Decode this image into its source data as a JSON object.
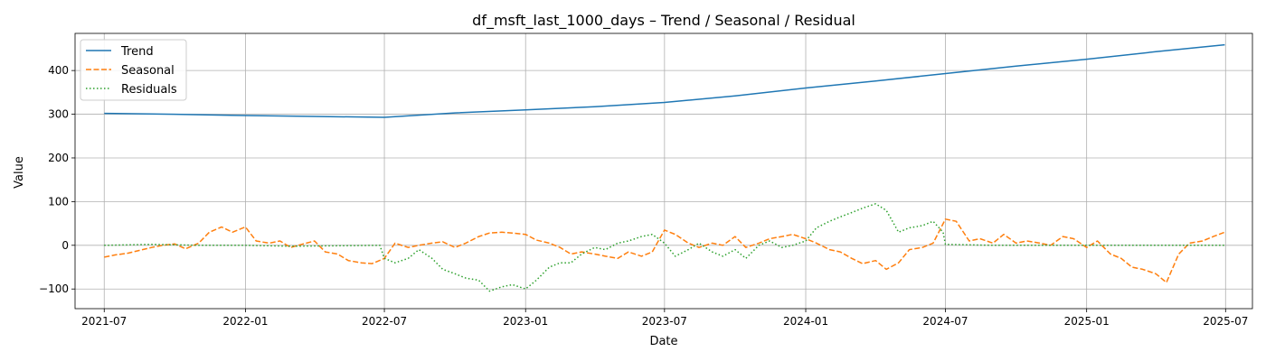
{
  "chart_data": {
    "type": "line",
    "title": "df_msft_last_1000_days – Trend / Seasonal / Residual",
    "xlabel": "Date",
    "ylabel": "Value",
    "xlim": [
      "2021-05-24",
      "2025-08-05"
    ],
    "ylim": [
      -145,
      485
    ],
    "x_ticks": [
      "2021-07",
      "2022-01",
      "2022-07",
      "2023-01",
      "2023-07",
      "2024-01",
      "2024-07",
      "2025-01",
      "2025-07"
    ],
    "y_ticks": [
      -100,
      0,
      100,
      200,
      300,
      400
    ],
    "grid": true,
    "legend_position": "top-left",
    "series": [
      {
        "name": "Trend",
        "color": "#1f77b4",
        "style": "solid",
        "points": [
          [
            "2021-07-01",
            302
          ],
          [
            "2021-10-01",
            300
          ],
          [
            "2022-01-01",
            297
          ],
          [
            "2022-04-01",
            295
          ],
          [
            "2022-07-01",
            293
          ],
          [
            "2022-10-01",
            303
          ],
          [
            "2023-01-01",
            310
          ],
          [
            "2023-04-01",
            317
          ],
          [
            "2023-07-01",
            327
          ],
          [
            "2023-10-01",
            342
          ],
          [
            "2024-01-01",
            360
          ],
          [
            "2024-04-01",
            376
          ],
          [
            "2024-07-01",
            393
          ],
          [
            "2024-10-01",
            410
          ],
          [
            "2025-01-01",
            426
          ],
          [
            "2025-04-01",
            443
          ],
          [
            "2025-06-30",
            459
          ]
        ]
      },
      {
        "name": "Seasonal",
        "color": "#ff7f0e",
        "style": "dashed",
        "points": [
          [
            "2021-07-01",
            -27
          ],
          [
            "2021-07-15",
            -22
          ],
          [
            "2021-08-01",
            -18
          ],
          [
            "2021-08-15",
            -12
          ],
          [
            "2021-09-01",
            -5
          ],
          [
            "2021-09-15",
            0
          ],
          [
            "2021-10-01",
            3
          ],
          [
            "2021-10-15",
            -8
          ],
          [
            "2021-11-01",
            5
          ],
          [
            "2021-11-15",
            30
          ],
          [
            "2021-12-01",
            42
          ],
          [
            "2021-12-15",
            30
          ],
          [
            "2022-01-01",
            42
          ],
          [
            "2022-01-15",
            10
          ],
          [
            "2022-02-01",
            5
          ],
          [
            "2022-02-15",
            10
          ],
          [
            "2022-03-01",
            -5
          ],
          [
            "2022-03-15",
            2
          ],
          [
            "2022-04-01",
            10
          ],
          [
            "2022-04-15",
            -15
          ],
          [
            "2022-05-01",
            -20
          ],
          [
            "2022-05-15",
            -35
          ],
          [
            "2022-06-01",
            -40
          ],
          [
            "2022-06-15",
            -42
          ],
          [
            "2022-07-01",
            -30
          ],
          [
            "2022-07-15",
            5
          ],
          [
            "2022-08-01",
            -5
          ],
          [
            "2022-08-15",
            0
          ],
          [
            "2022-09-01",
            5
          ],
          [
            "2022-09-15",
            8
          ],
          [
            "2022-10-01",
            -5
          ],
          [
            "2022-10-15",
            5
          ],
          [
            "2022-11-01",
            20
          ],
          [
            "2022-11-15",
            28
          ],
          [
            "2022-12-01",
            30
          ],
          [
            "2022-12-15",
            28
          ],
          [
            "2023-01-01",
            25
          ],
          [
            "2023-01-15",
            12
          ],
          [
            "2023-02-01",
            5
          ],
          [
            "2023-02-15",
            -5
          ],
          [
            "2023-03-01",
            -20
          ],
          [
            "2023-03-15",
            -15
          ],
          [
            "2023-04-01",
            -20
          ],
          [
            "2023-04-15",
            -25
          ],
          [
            "2023-05-01",
            -30
          ],
          [
            "2023-05-15",
            -15
          ],
          [
            "2023-06-01",
            -25
          ],
          [
            "2023-06-15",
            -15
          ],
          [
            "2023-07-01",
            35
          ],
          [
            "2023-07-15",
            25
          ],
          [
            "2023-08-01",
            5
          ],
          [
            "2023-08-15",
            -5
          ],
          [
            "2023-09-01",
            5
          ],
          [
            "2023-09-15",
            0
          ],
          [
            "2023-10-01",
            20
          ],
          [
            "2023-10-15",
            -5
          ],
          [
            "2023-11-01",
            5
          ],
          [
            "2023-11-15",
            15
          ],
          [
            "2023-12-01",
            20
          ],
          [
            "2023-12-15",
            25
          ],
          [
            "2024-01-01",
            15
          ],
          [
            "2024-01-15",
            5
          ],
          [
            "2024-02-01",
            -10
          ],
          [
            "2024-02-15",
            -15
          ],
          [
            "2024-03-01",
            -30
          ],
          [
            "2024-03-15",
            -42
          ],
          [
            "2024-04-01",
            -35
          ],
          [
            "2024-04-15",
            -55
          ],
          [
            "2024-05-01",
            -40
          ],
          [
            "2024-05-15",
            -10
          ],
          [
            "2024-06-01",
            -5
          ],
          [
            "2024-06-15",
            5
          ],
          [
            "2024-07-01",
            60
          ],
          [
            "2024-07-15",
            55
          ],
          [
            "2024-08-01",
            10
          ],
          [
            "2024-08-15",
            15
          ],
          [
            "2024-09-01",
            5
          ],
          [
            "2024-09-15",
            25
          ],
          [
            "2024-10-01",
            5
          ],
          [
            "2024-10-15",
            10
          ],
          [
            "2024-11-01",
            5
          ],
          [
            "2024-11-15",
            0
          ],
          [
            "2024-12-01",
            20
          ],
          [
            "2024-12-15",
            15
          ],
          [
            "2025-01-01",
            -5
          ],
          [
            "2025-01-15",
            10
          ],
          [
            "2025-02-01",
            -20
          ],
          [
            "2025-02-15",
            -30
          ],
          [
            "2025-03-01",
            -50
          ],
          [
            "2025-03-15",
            -55
          ],
          [
            "2025-04-01",
            -65
          ],
          [
            "2025-04-15",
            -85
          ],
          [
            "2025-05-01",
            -20
          ],
          [
            "2025-05-15",
            5
          ],
          [
            "2025-06-01",
            10
          ],
          [
            "2025-06-15",
            20
          ],
          [
            "2025-06-30",
            30
          ]
        ]
      },
      {
        "name": "Residuals",
        "color": "#2ca02c",
        "style": "dotted",
        "points": [
          [
            "2021-07-01",
            0
          ],
          [
            "2021-09-01",
            2
          ],
          [
            "2021-11-01",
            0
          ],
          [
            "2022-01-01",
            0
          ],
          [
            "2022-03-01",
            -2
          ],
          [
            "2022-05-01",
            -1
          ],
          [
            "2022-06-25",
            0
          ],
          [
            "2022-07-01",
            -30
          ],
          [
            "2022-07-15",
            -40
          ],
          [
            "2022-08-01",
            -30
          ],
          [
            "2022-08-15",
            -10
          ],
          [
            "2022-09-01",
            -30
          ],
          [
            "2022-09-15",
            -55
          ],
          [
            "2022-10-01",
            -65
          ],
          [
            "2022-10-15",
            -75
          ],
          [
            "2022-11-01",
            -80
          ],
          [
            "2022-11-15",
            -105
          ],
          [
            "2022-12-01",
            -95
          ],
          [
            "2022-12-15",
            -90
          ],
          [
            "2023-01-01",
            -100
          ],
          [
            "2023-01-15",
            -80
          ],
          [
            "2023-02-01",
            -50
          ],
          [
            "2023-02-15",
            -40
          ],
          [
            "2023-03-01",
            -40
          ],
          [
            "2023-03-15",
            -20
          ],
          [
            "2023-04-01",
            -5
          ],
          [
            "2023-04-15",
            -10
          ],
          [
            "2023-05-01",
            5
          ],
          [
            "2023-05-15",
            10
          ],
          [
            "2023-06-01",
            20
          ],
          [
            "2023-06-15",
            25
          ],
          [
            "2023-07-01",
            5
          ],
          [
            "2023-07-15",
            -25
          ],
          [
            "2023-08-01",
            -10
          ],
          [
            "2023-08-15",
            5
          ],
          [
            "2023-09-01",
            -15
          ],
          [
            "2023-09-15",
            -25
          ],
          [
            "2023-10-01",
            -10
          ],
          [
            "2023-10-15",
            -30
          ],
          [
            "2023-11-01",
            0
          ],
          [
            "2023-11-15",
            10
          ],
          [
            "2023-12-01",
            -5
          ],
          [
            "2023-12-15",
            0
          ],
          [
            "2024-01-01",
            10
          ],
          [
            "2024-01-15",
            40
          ],
          [
            "2024-02-01",
            55
          ],
          [
            "2024-02-15",
            65
          ],
          [
            "2024-03-01",
            75
          ],
          [
            "2024-03-15",
            85
          ],
          [
            "2024-04-01",
            95
          ],
          [
            "2024-04-15",
            80
          ],
          [
            "2024-05-01",
            30
          ],
          [
            "2024-05-15",
            40
          ],
          [
            "2024-06-01",
            45
          ],
          [
            "2024-06-15",
            55
          ],
          [
            "2024-06-28",
            30
          ],
          [
            "2024-07-01",
            2
          ],
          [
            "2024-09-01",
            0
          ],
          [
            "2024-11-01",
            0
          ],
          [
            "2025-01-01",
            0
          ],
          [
            "2025-03-01",
            0
          ],
          [
            "2025-05-01",
            0
          ],
          [
            "2025-06-30",
            0
          ]
        ]
      }
    ]
  }
}
